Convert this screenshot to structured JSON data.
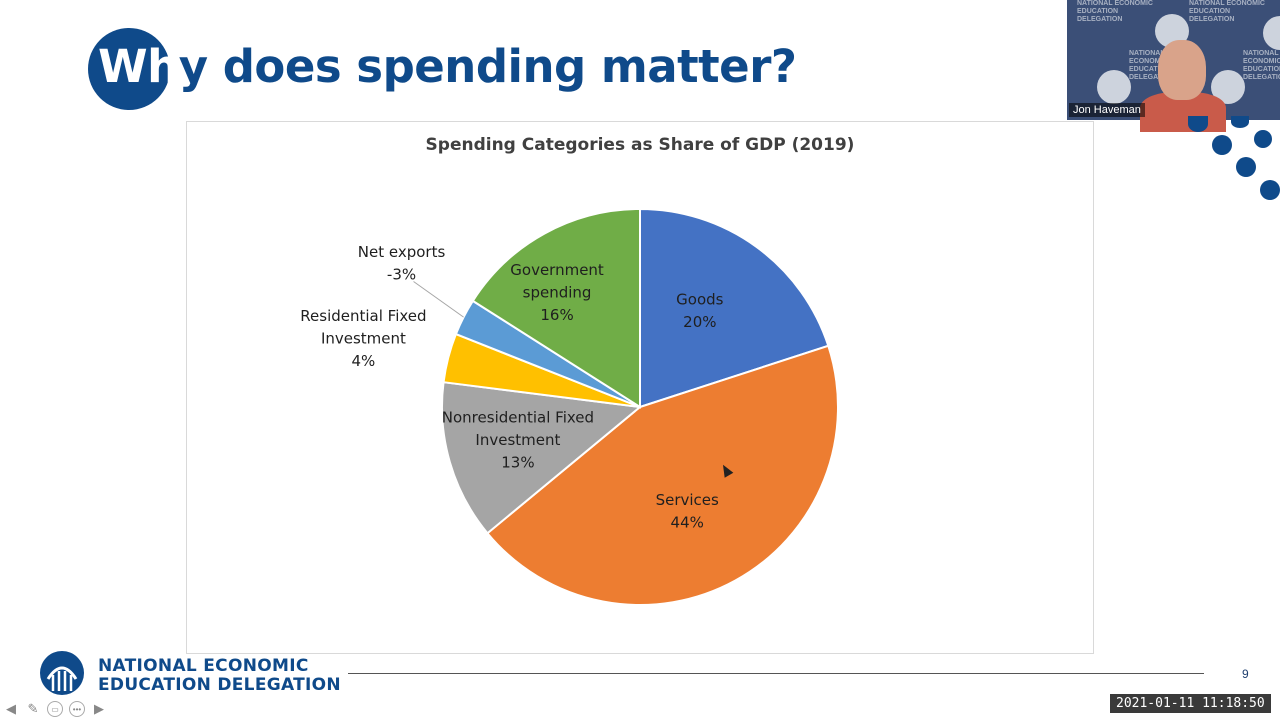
{
  "slide": {
    "title_prefix": "Wh",
    "title_rest": "y does spending matter?",
    "page_number": "9"
  },
  "branding": {
    "line1": "NATIONAL ECONOMIC",
    "line2": "EDUCATION DELEGATION",
    "color": "#0f4a8a"
  },
  "video": {
    "participant_name": "Jon Haveman",
    "bg_text": "NATIONAL ECONOMIC EDUCATION DELEGATION"
  },
  "recording": {
    "timestamp": "2021-01-11  11:18:50"
  },
  "nav": {
    "prev_icon": "arrow-left-icon",
    "pen_icon": "pen-icon",
    "slides_icon": "slides-icon",
    "more_icon": "more-icon",
    "next_icon": "arrow-right-icon"
  },
  "chart_data": {
    "type": "pie",
    "title": "Spending Categories as Share of GDP (2019)",
    "slices": [
      {
        "name": "Goods",
        "value": 20,
        "label_lines": [
          "Goods",
          "20%"
        ],
        "color": "#4472c4"
      },
      {
        "name": "Services",
        "value": 44,
        "label_lines": [
          "Services",
          "44%"
        ],
        "color": "#ed7d31"
      },
      {
        "name": "Nonresidential Fixed Investment",
        "value": 13,
        "label_lines": [
          "Nonresidential Fixed",
          "Investment",
          "13%"
        ],
        "color": "#a5a5a5"
      },
      {
        "name": "Residential Fixed Investment",
        "value": 4,
        "label_lines": [
          "Residential Fixed",
          "Investment",
          "4%"
        ],
        "color": "#ffc000"
      },
      {
        "name": "Net exports",
        "value": -3,
        "display_share": 3,
        "label_lines": [
          "Net exports",
          "-3%"
        ],
        "color": "#5b9bd5"
      },
      {
        "name": "Government spending",
        "value": 16,
        "label_lines": [
          "Government",
          "spending",
          "16%"
        ],
        "color": "#70ad47"
      }
    ],
    "legend": "none"
  }
}
